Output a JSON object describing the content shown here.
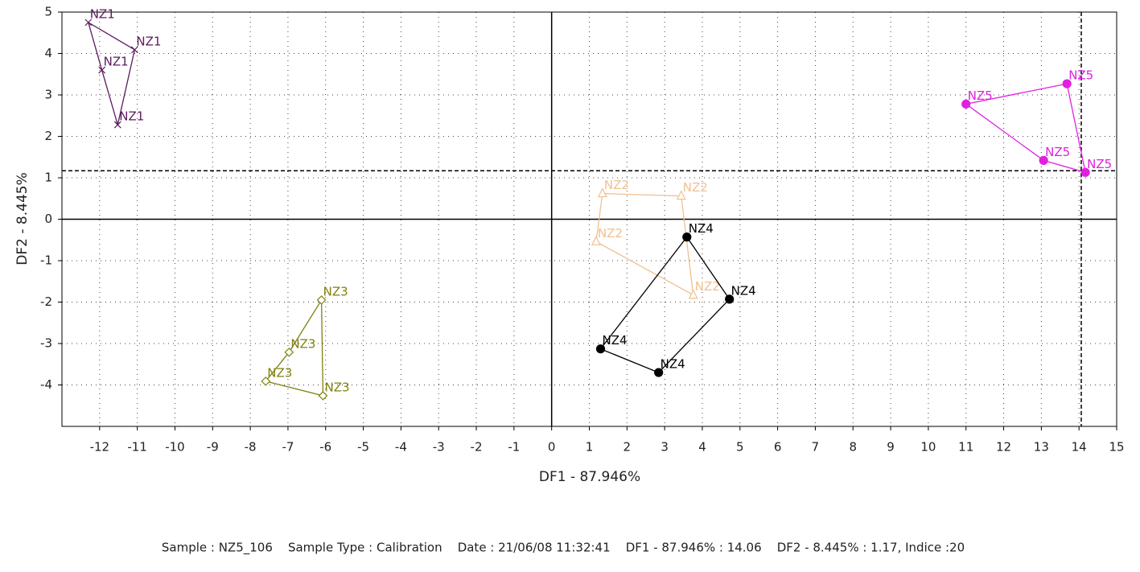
{
  "chart_data": {
    "type": "scatter",
    "x_label": "DF1 - 87.946%",
    "y_label": "DF2 - 8.445%",
    "xlim": [
      -13,
      15
    ],
    "ylim": [
      -5,
      5
    ],
    "xticks": [
      -12,
      -11,
      -10,
      -9,
      -8,
      -7,
      -6,
      -5,
      -4,
      -3,
      -2,
      -1,
      0,
      1,
      2,
      3,
      4,
      5,
      6,
      7,
      8,
      9,
      10,
      11,
      12,
      13,
      14,
      15
    ],
    "yticks": [
      -4,
      -3,
      -2,
      -1,
      0,
      1,
      2,
      3,
      4,
      5
    ],
    "grid": true,
    "cursor": {
      "x": 14.06,
      "y": 1.17
    },
    "series": [
      {
        "name": "NZ1",
        "color": "#5c1a5c",
        "marker": "x",
        "x": [
          -12.3,
          -11.07,
          -11.52,
          -11.94
        ],
        "values": [
          4.75,
          4.09,
          2.28,
          3.6
        ]
      },
      {
        "name": "NZ2",
        "color": "#f0c090",
        "marker": "triangle",
        "x": [
          1.35,
          3.44,
          3.76,
          1.18
        ],
        "values": [
          0.62,
          0.56,
          -1.83,
          -0.54
        ]
      },
      {
        "name": "NZ3",
        "color": "#808010",
        "marker": "diamond",
        "x": [
          -6.11,
          -6.07,
          -7.59,
          -6.97
        ],
        "values": [
          -1.95,
          -4.26,
          -3.91,
          -3.21
        ]
      },
      {
        "name": "NZ4",
        "color": "#000000",
        "marker": "circle",
        "x": [
          3.59,
          4.72,
          2.84,
          1.3
        ],
        "values": [
          -0.43,
          -1.93,
          -3.7,
          -3.13
        ]
      },
      {
        "name": "NZ5",
        "color": "#e020e0",
        "marker": "circle",
        "x": [
          11.0,
          13.68,
          14.17,
          13.06
        ],
        "values": [
          2.78,
          3.27,
          1.13,
          1.42
        ]
      }
    ]
  },
  "footer": "Sample : NZ5_106    Sample Type : Calibration    Date : 21/06/08 11:32:41    DF1 - 87.946% : 14.06    DF2 - 8.445% : 1.17, Indice :20"
}
